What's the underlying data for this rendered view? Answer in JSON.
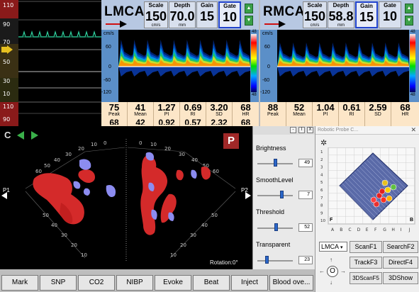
{
  "vitals": {
    "scale_labels": [
      "110",
      "90",
      "70",
      "50",
      "30",
      "10",
      "110",
      "90"
    ],
    "accent_colors": {
      "ecg": "#2fd4a0",
      "marker": "#e6c020",
      "alarm": "#a81c1c"
    }
  },
  "lmca": {
    "name": "LMCA",
    "params": [
      {
        "label": "Scale",
        "value": "150",
        "unit": "cm/s"
      },
      {
        "label": "Depth",
        "value": "70.0",
        "unit": "mm"
      },
      {
        "label": "Gain",
        "value": "15",
        "unit": ""
      },
      {
        "label": "Gate",
        "value": "10",
        "unit": ""
      }
    ],
    "axis_unit": "cm/s",
    "axis_ticks": [
      "60",
      "0",
      "-60",
      "-120"
    ],
    "cbar_top": "48",
    "cbar_bottom": "48",
    "stats": [
      {
        "value": "75",
        "label": "Peak",
        "value2": "68"
      },
      {
        "value": "41",
        "label": "Mean",
        "value2": "42"
      },
      {
        "value": "1.27",
        "label": "PI",
        "value2": "0.92"
      },
      {
        "value": "0.69",
        "label": "RI",
        "value2": "0.57"
      },
      {
        "value": "3.20",
        "label": "SD",
        "value2": "2.32"
      },
      {
        "value": "68",
        "label": "HR",
        "value2": "68"
      }
    ]
  },
  "rmca": {
    "name": "RMCA",
    "params": [
      {
        "label": "Scale",
        "value": "150",
        "unit": "cm/s"
      },
      {
        "label": "Depth",
        "value": "58.8",
        "unit": "mm"
      },
      {
        "label": "Gain",
        "value": "15",
        "unit": ""
      },
      {
        "label": "Gate",
        "value": "10",
        "unit": ""
      }
    ],
    "axis_unit": "cm/s",
    "axis_ticks": [
      "60",
      "0",
      "-60",
      "-120"
    ],
    "cbar_top": "48",
    "cbar_bottom": "48",
    "stats": [
      {
        "value": "88",
        "label": "Peak",
        "value2": ""
      },
      {
        "value": "52",
        "label": "Mean",
        "value2": ""
      },
      {
        "value": "1.04",
        "label": "PI",
        "value2": ""
      },
      {
        "value": "0.61",
        "label": "RI",
        "value2": ""
      },
      {
        "value": "2.59",
        "label": "SD",
        "value2": ""
      },
      {
        "value": "68",
        "label": "HR",
        "value2": ""
      }
    ]
  },
  "viewer": {
    "badge": "P",
    "left_label": "P1",
    "right_label": "P2",
    "rotation": "Rotation:0°",
    "axis_ticks": [
      "60",
      "50",
      "40",
      "30",
      "20",
      "10",
      "0"
    ]
  },
  "sliders": [
    {
      "label": "Brightness",
      "value": 49,
      "max": 100
    },
    {
      "label": "SmoothLevel",
      "value": 7,
      "max": 10
    },
    {
      "label": "Threshold",
      "value": 52,
      "max": 100
    },
    {
      "label": "Transparent",
      "value": 23,
      "max": 100
    }
  ],
  "window_buttons": [
    "-",
    "I",
    "X"
  ],
  "robot": {
    "title": "Robotic Probe C...",
    "close": "✕",
    "col_labels": [
      "A",
      "B",
      "C",
      "D",
      "E",
      "F",
      "G",
      "H",
      "I",
      "J"
    ],
    "row_labels": [
      "1",
      "2",
      "3",
      "4",
      "5",
      "6",
      "7",
      "8",
      "9",
      "10"
    ],
    "corner_f": "F",
    "corner_b": "B",
    "vessel": "LMCA",
    "buttons": [
      "ScanF1",
      "SearchF2",
      "TrackF3",
      "DirectF4",
      "3DScanF5",
      "3DShow"
    ],
    "dpad_center": "O"
  },
  "events": [
    "Mark",
    "SNP",
    "CO2",
    "NIBP",
    "Evoke",
    "Beat",
    "Inject",
    "Blood ove..."
  ]
}
